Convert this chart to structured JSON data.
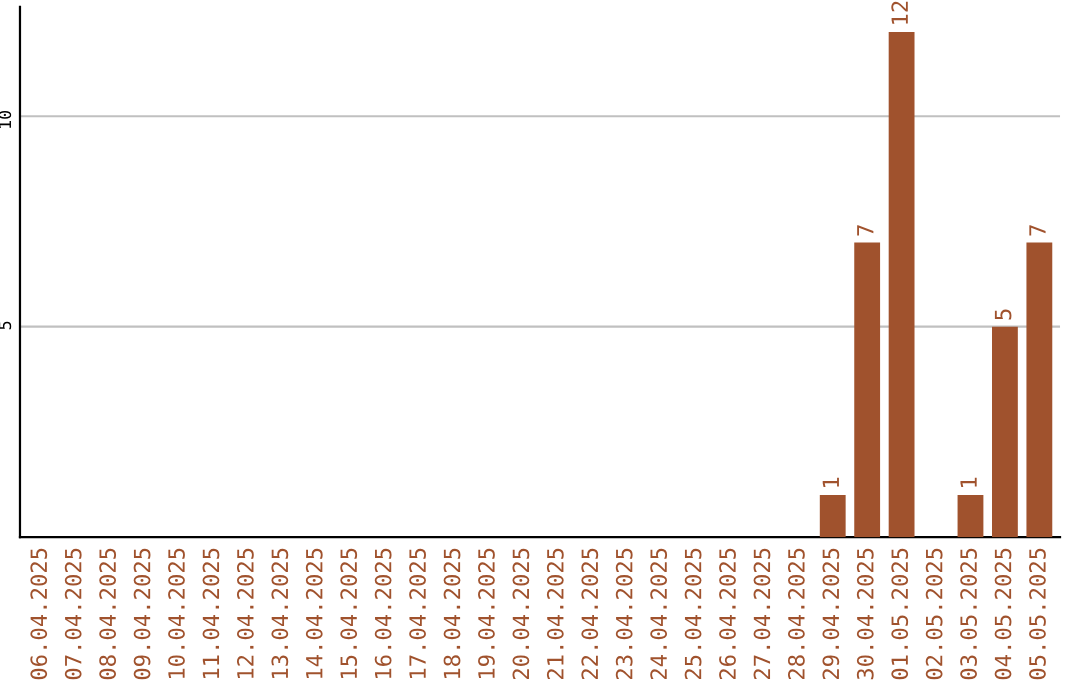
{
  "chart_data": {
    "type": "bar",
    "categories": [
      "06.04.2025",
      "07.04.2025",
      "08.04.2025",
      "09.04.2025",
      "10.04.2025",
      "11.04.2025",
      "12.04.2025",
      "13.04.2025",
      "14.04.2025",
      "15.04.2025",
      "16.04.2025",
      "17.04.2025",
      "18.04.2025",
      "19.04.2025",
      "20.04.2025",
      "21.04.2025",
      "22.04.2025",
      "23.04.2025",
      "24.04.2025",
      "25.04.2025",
      "26.04.2025",
      "27.04.2025",
      "28.04.2025",
      "29.04.2025",
      "30.04.2025",
      "01.05.2025",
      "02.05.2025",
      "03.05.2025",
      "04.05.2025",
      "05.05.2025"
    ],
    "values": [
      0,
      0,
      0,
      0,
      0,
      0,
      0,
      0,
      0,
      0,
      0,
      0,
      0,
      0,
      0,
      0,
      0,
      0,
      0,
      0,
      0,
      0,
      0,
      1,
      7,
      12,
      0,
      1,
      5,
      7
    ],
    "value_labels": [
      null,
      null,
      null,
      null,
      null,
      null,
      null,
      null,
      null,
      null,
      null,
      null,
      null,
      null,
      null,
      null,
      null,
      null,
      null,
      null,
      null,
      null,
      null,
      "1",
      "7",
      "12",
      null,
      "1",
      "5",
      "7"
    ],
    "color": "#a0522d",
    "ylim": [
      0,
      12.6
    ],
    "yticks": [
      5,
      10
    ],
    "grid": "y",
    "legend": false
  }
}
